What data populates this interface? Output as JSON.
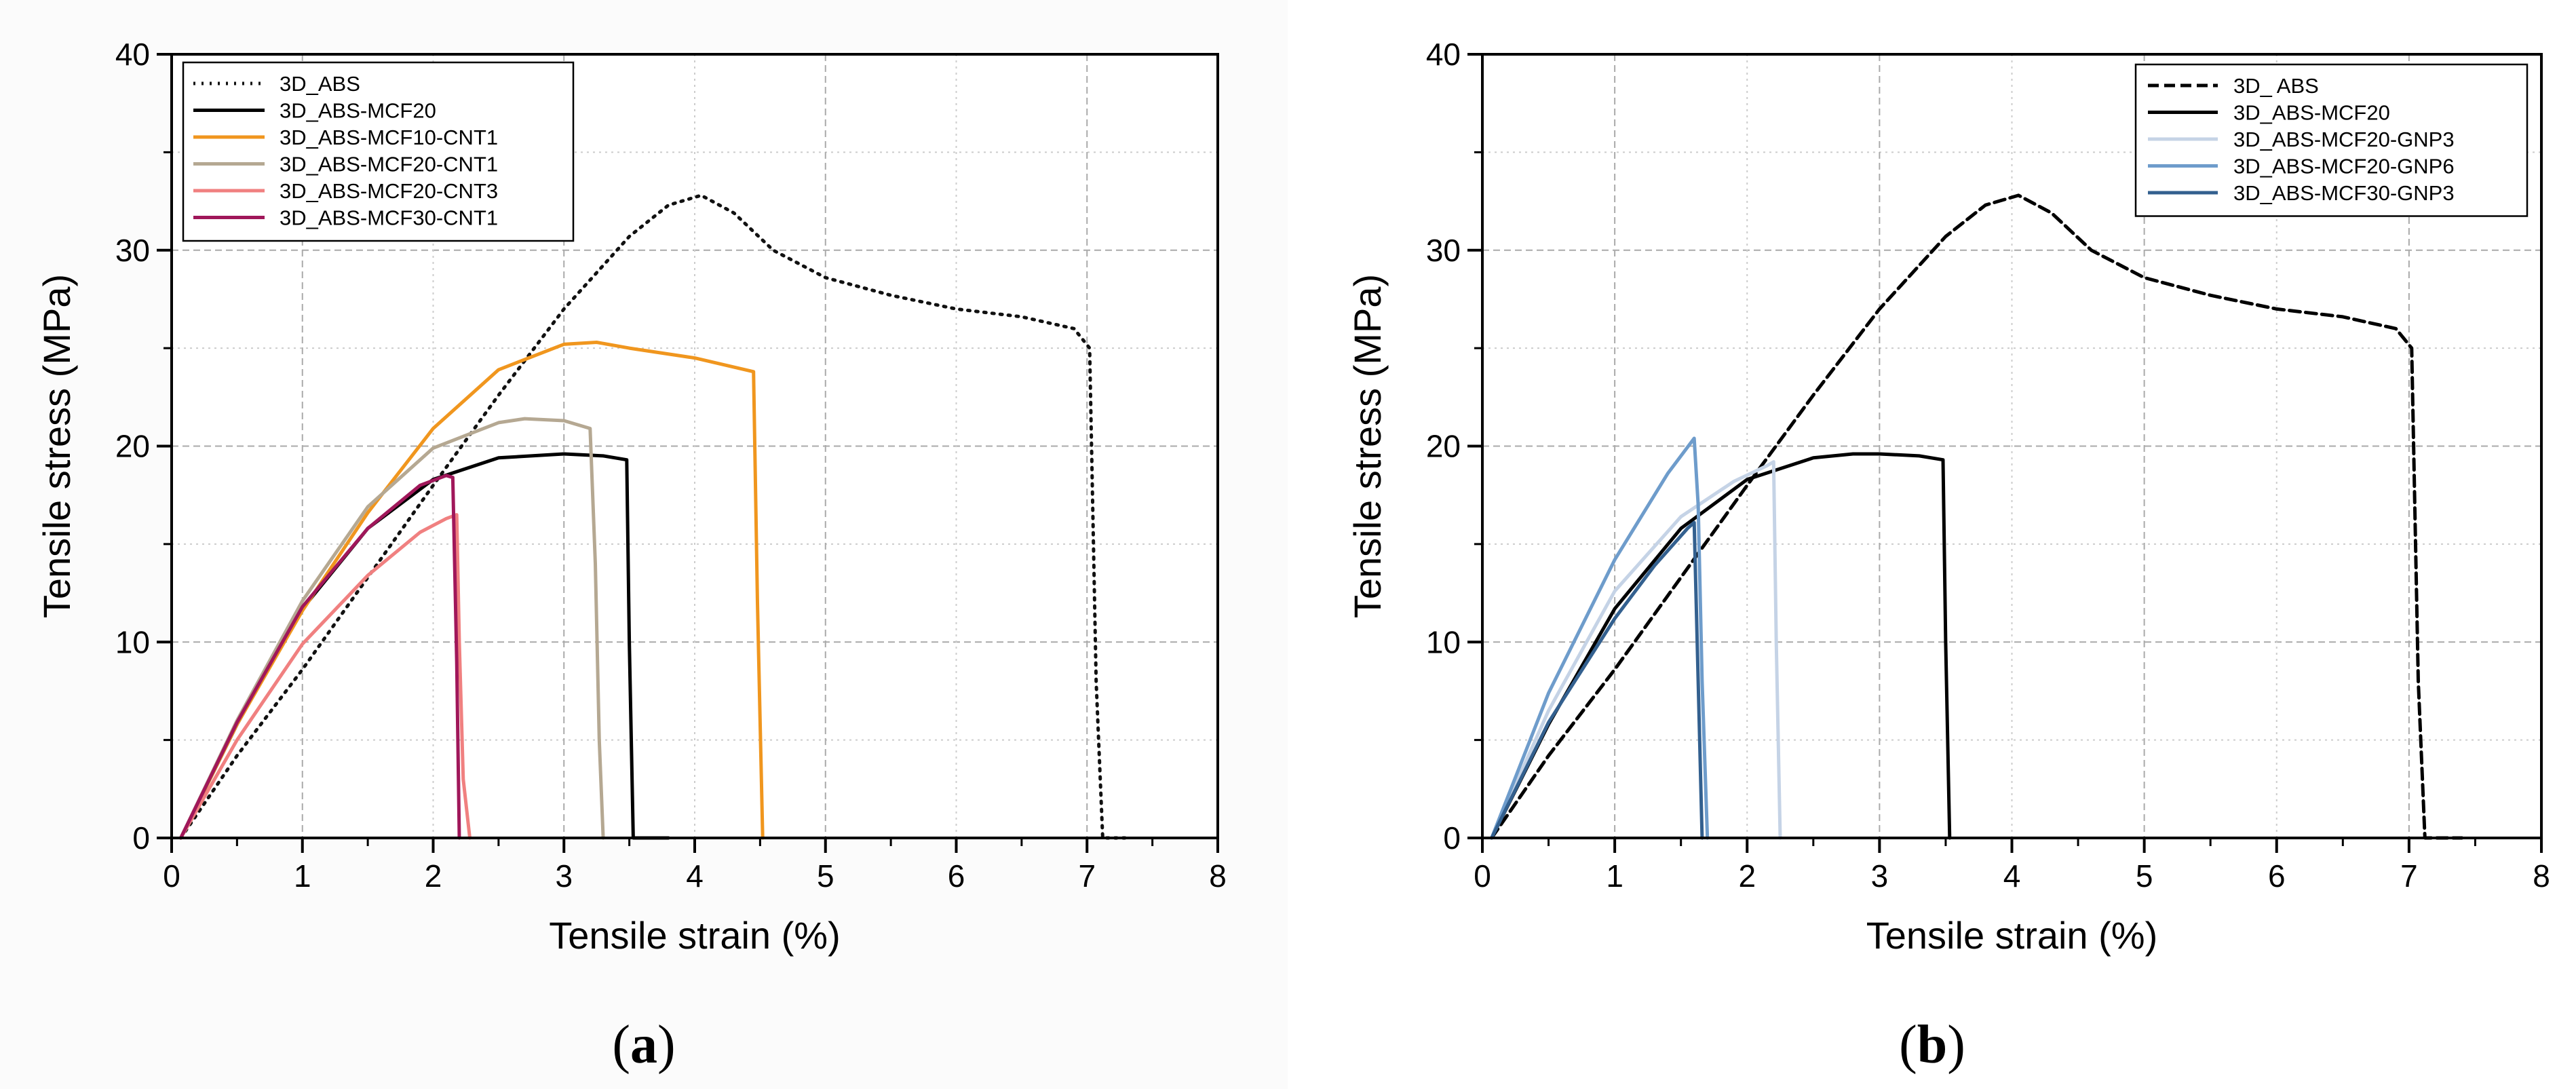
{
  "chart_data": [
    {
      "panel": "a",
      "type": "line",
      "xlabel": "Tensile strain (%)",
      "ylabel": "Tensile stress (MPa)",
      "xlim": [
        0,
        8
      ],
      "ylim": [
        0,
        40
      ],
      "xticks": [
        "0",
        "1",
        "2",
        "3",
        "4",
        "5",
        "6",
        "7",
        "8"
      ],
      "yticks": [
        "0",
        "10",
        "20",
        "30",
        "40"
      ],
      "grid": true,
      "legend_position": "top-left",
      "series": [
        {
          "name": "3D_ABS",
          "color": "#111111",
          "dash": "dot",
          "x": [
            0.07,
            0.5,
            1.0,
            1.5,
            2.0,
            2.5,
            3.0,
            3.5,
            3.8,
            4.05,
            4.3,
            4.6,
            5.0,
            5.5,
            6.0,
            6.5,
            6.9,
            7.02,
            7.07,
            7.12,
            7.3
          ],
          "y": [
            0,
            4.2,
            8.6,
            13.3,
            18.0,
            22.6,
            27.0,
            30.7,
            32.3,
            32.8,
            31.9,
            30.0,
            28.6,
            27.7,
            27.0,
            26.6,
            26.0,
            25.0,
            8.0,
            0,
            0
          ]
        },
        {
          "name": "3D_ABS-MCF20",
          "color": "#000000",
          "dash": "solid",
          "x": [
            0.07,
            0.5,
            1.0,
            1.5,
            2.0,
            2.5,
            3.0,
            3.3,
            3.48,
            3.5,
            3.53,
            3.8
          ],
          "y": [
            0,
            5.8,
            11.7,
            15.8,
            18.3,
            19.4,
            19.6,
            19.5,
            19.3,
            10.0,
            0,
            0
          ]
        },
        {
          "name": "3D_ABS-MCF10-CNT1",
          "color": "#F0961E",
          "dash": "solid",
          "x": [
            0.07,
            0.5,
            1.0,
            1.5,
            2.0,
            2.5,
            3.0,
            3.25,
            3.5,
            4.0,
            4.45,
            4.48,
            4.52
          ],
          "y": [
            0,
            5.8,
            11.6,
            16.6,
            20.9,
            23.9,
            25.2,
            25.3,
            25.0,
            24.5,
            23.8,
            12.0,
            0
          ]
        },
        {
          "name": "3D_ABS-MCF20-CNT1",
          "color": "#B5A892",
          "dash": "solid",
          "x": [
            0.07,
            0.5,
            1.0,
            1.5,
            2.0,
            2.5,
            2.7,
            3.0,
            3.2,
            3.24,
            3.27,
            3.3
          ],
          "y": [
            0,
            6.0,
            12.1,
            16.9,
            19.9,
            21.2,
            21.4,
            21.3,
            20.9,
            14.0,
            5.0,
            0
          ]
        },
        {
          "name": "3D_ABS-MCF20-CNT3",
          "color": "#F08080",
          "dash": "solid",
          "x": [
            0.07,
            0.5,
            1.0,
            1.5,
            1.9,
            2.1,
            2.18,
            2.2,
            2.23,
            2.28
          ],
          "y": [
            0,
            5.0,
            9.9,
            13.4,
            15.6,
            16.3,
            16.5,
            10.0,
            3.0,
            0
          ]
        },
        {
          "name": "3D_ABS-MCF30-CNT1",
          "color": "#A0175A",
          "dash": "solid",
          "x": [
            0.07,
            0.5,
            1.0,
            1.5,
            1.9,
            2.1,
            2.15,
            2.18,
            2.2
          ],
          "y": [
            0,
            5.9,
            11.8,
            15.8,
            18.0,
            18.5,
            18.4,
            9.0,
            0
          ]
        }
      ]
    },
    {
      "panel": "b",
      "type": "line",
      "xlabel": "Tensile strain (%)",
      "ylabel": "Tensile stress (MPa)",
      "xlim": [
        0,
        8
      ],
      "ylim": [
        0,
        40
      ],
      "xticks": [
        "0",
        "1",
        "2",
        "3",
        "4",
        "5",
        "6",
        "7",
        "8"
      ],
      "yticks": [
        "0",
        "10",
        "20",
        "30",
        "40"
      ],
      "grid": true,
      "legend_position": "top-right",
      "series": [
        {
          "name": "3D_ ABS",
          "color": "#000000",
          "dash": "dash",
          "x": [
            0.07,
            0.5,
            1.0,
            1.5,
            2.0,
            2.5,
            3.0,
            3.5,
            3.8,
            4.05,
            4.3,
            4.6,
            5.0,
            5.5,
            6.0,
            6.5,
            6.9,
            7.02,
            7.07,
            7.12,
            7.4
          ],
          "y": [
            0,
            4.2,
            8.6,
            13.3,
            18.0,
            22.6,
            27.0,
            30.7,
            32.3,
            32.8,
            31.9,
            30.0,
            28.6,
            27.7,
            27.0,
            26.6,
            26.0,
            25.0,
            8.0,
            0,
            0
          ]
        },
        {
          "name": "3D_ABS-MCF20",
          "color": "#000000",
          "dash": "solid",
          "x": [
            0.07,
            0.5,
            1.0,
            1.5,
            2.0,
            2.5,
            2.8,
            3.0,
            3.3,
            3.48,
            3.5,
            3.53
          ],
          "y": [
            0,
            5.8,
            11.7,
            15.8,
            18.3,
            19.4,
            19.6,
            19.6,
            19.5,
            19.3,
            10.0,
            0
          ]
        },
        {
          "name": "3D_ABS-MCF20-GNP3",
          "color": "#C5D3E6",
          "dash": "solid",
          "x": [
            0.07,
            0.5,
            1.0,
            1.5,
            1.9,
            2.15,
            2.2,
            2.22,
            2.25
          ],
          "y": [
            0,
            6.5,
            12.6,
            16.4,
            18.2,
            19.0,
            19.2,
            10.0,
            0
          ]
        },
        {
          "name": "3D_ABS-MCF20-GNP6",
          "color": "#6E9CCB",
          "dash": "solid",
          "x": [
            0.07,
            0.5,
            1.0,
            1.4,
            1.6,
            1.63,
            1.66,
            1.7
          ],
          "y": [
            0,
            7.4,
            14.2,
            18.6,
            20.4,
            17.0,
            8.0,
            0
          ]
        },
        {
          "name": "3D_ABS-MCF30-GNP3",
          "color": "#33608F",
          "dash": "solid",
          "x": [
            0.07,
            0.5,
            1.0,
            1.3,
            1.55,
            1.6,
            1.63,
            1.66
          ],
          "y": [
            0,
            5.9,
            11.2,
            13.9,
            15.8,
            16.1,
            8.0,
            0
          ]
        }
      ]
    }
  ],
  "panel_labels": {
    "a": "a",
    "b": "b"
  }
}
